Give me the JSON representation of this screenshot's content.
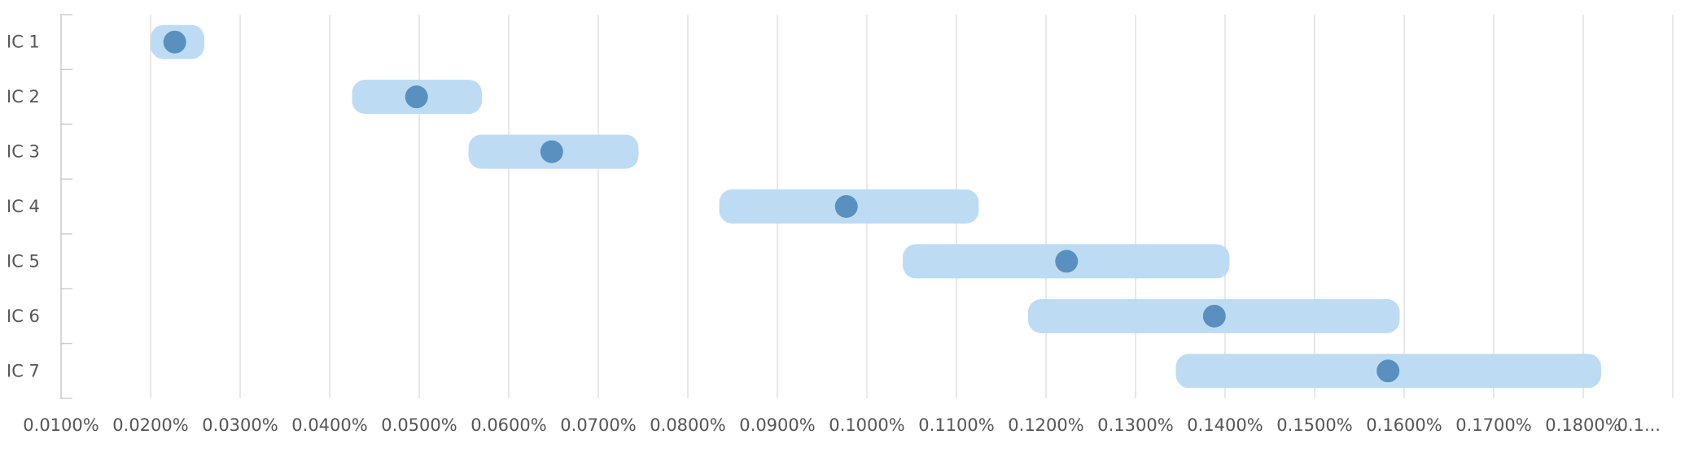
{
  "chart_data": {
    "type": "range",
    "categories": [
      "IC 1",
      "IC 2",
      "IC 3",
      "IC 4",
      "IC 5",
      "IC 6",
      "IC 7"
    ],
    "series": [
      {
        "low": [
          0.02,
          0.0425,
          0.0555,
          0.0835,
          0.104,
          0.118,
          0.1345
        ],
        "high": [
          0.026,
          0.057,
          0.0745,
          0.1125,
          0.1405,
          0.1595,
          0.182
        ],
        "value": [
          0.0227,
          0.0497,
          0.0648,
          0.0977,
          0.1223,
          0.1388,
          0.1582
        ]
      }
    ],
    "xlim": [
      0.01,
      0.19
    ],
    "x_ticks": [
      "0.0100%",
      "0.0200%",
      "0.0300%",
      "0.0400%",
      "0.0500%",
      "0.0600%",
      "0.0700%",
      "0.0800%",
      "0.0900%",
      "0.1000%",
      "0.1100%",
      "0.1200%",
      "0.1300%",
      "0.1400%",
      "0.1500%",
      "0.1600%",
      "0.1700%",
      "0.1800%",
      "0.1..."
    ],
    "x_tick_values": [
      0.01,
      0.02,
      0.03,
      0.04,
      0.05,
      0.06,
      0.07,
      0.08,
      0.09,
      0.1,
      0.11,
      0.12,
      0.13,
      0.14,
      0.15,
      0.16,
      0.17,
      0.18,
      0.19
    ],
    "grid": true,
    "legend": "none",
    "colors": {
      "range": "#bddcf3",
      "point": "#5990c0",
      "grid": "#e0e0e0",
      "axis": "#cccccc"
    }
  }
}
